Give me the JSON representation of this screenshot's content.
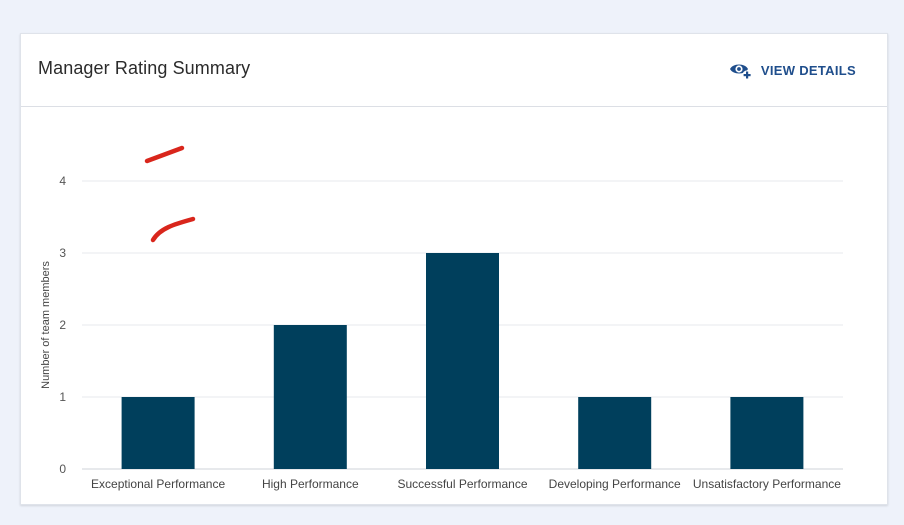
{
  "header": {
    "title": "Manager Rating Summary",
    "view_details_label": "VIEW DETAILS"
  },
  "colors": {
    "bar": "#003f5c",
    "accent": "#1f4e8c",
    "annotation": "#d9261c"
  },
  "icons": {
    "view_details": "eye-plus-icon"
  },
  "chart_data": {
    "type": "bar",
    "categories": [
      "Exceptional Performance",
      "High Performance",
      "Successful Performance",
      "Developing Performance",
      "Unsatisfactory Performance"
    ],
    "values": [
      1,
      2,
      3,
      1,
      1
    ],
    "ylabel": "Number of team members",
    "xlabel": "",
    "ylim": [
      0,
      4
    ],
    "yticks": [
      0,
      1,
      2,
      3,
      4
    ],
    "grid": true
  }
}
